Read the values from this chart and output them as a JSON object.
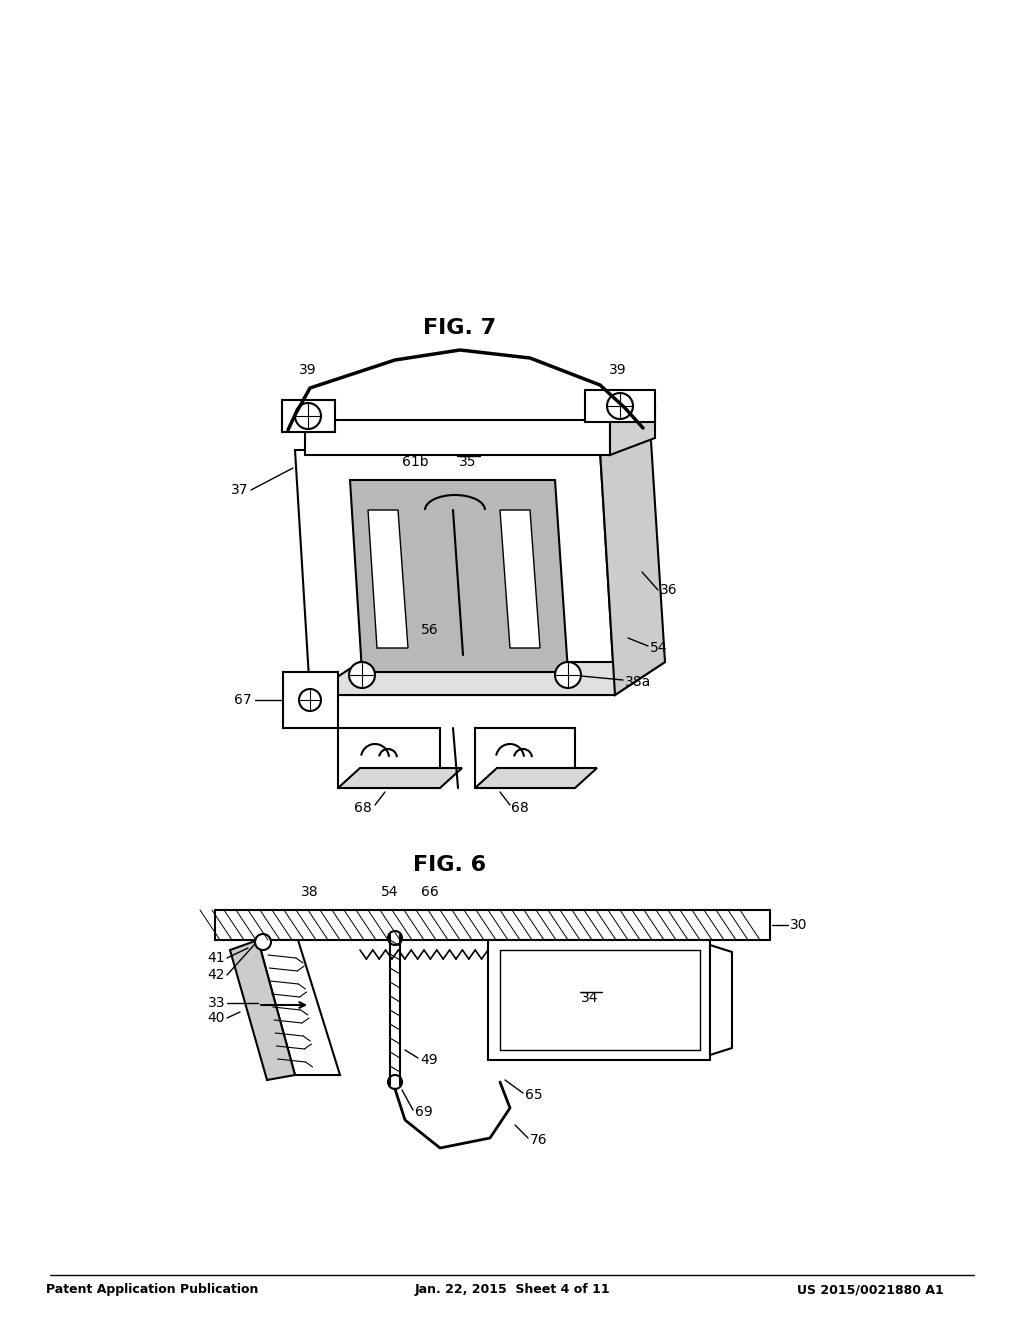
{
  "background_color": "#ffffff",
  "header_left": "Patent Application Publication",
  "header_center": "Jan. 22, 2015  Sheet 4 of 11",
  "header_right": "US 2015/0021880 A1",
  "fig6_caption": "FIG. 6",
  "fig7_caption": "FIG. 7",
  "line_color": "#000000",
  "line_width": 1.5,
  "hatch_color": "#000000",
  "font_size_header": 9,
  "font_size_label": 10,
  "font_size_caption": 16
}
